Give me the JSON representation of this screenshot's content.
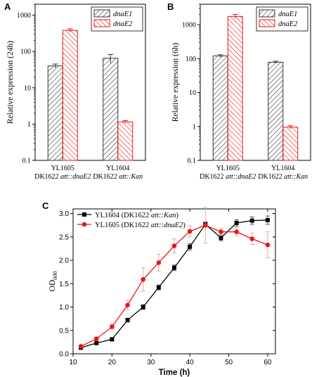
{
  "chart_data": [
    {
      "panel": "A",
      "type": "bar",
      "yscale": "log",
      "ylabel": "Relative expression (24h)",
      "ylim": [
        0.1,
        2000
      ],
      "yticks": [
        "0.1",
        "1",
        "10",
        "100",
        "1000"
      ],
      "categories": [
        {
          "line1": "YL1605",
          "line2_prefix": "DK1622 ",
          "line2_italic": "att::dnaE2"
        },
        {
          "line1": "YL1604",
          "line2_prefix": "DK1622 ",
          "line2_italic": "att::Kan"
        }
      ],
      "series": [
        {
          "name": "dnaE1",
          "values": [
            40,
            65
          ],
          "errors": [
            5,
            18
          ]
        },
        {
          "name": "dnaE2",
          "values": [
            380,
            1.15
          ],
          "errors": [
            40,
            0.1
          ]
        }
      ],
      "legend": "top-right"
    },
    {
      "panel": "B",
      "type": "bar",
      "yscale": "log",
      "ylabel": "Relative expression (6h)",
      "ylim": [
        0.1,
        4000
      ],
      "yticks": [
        "0.1",
        "1",
        "10",
        "100",
        "1000"
      ],
      "categories": [
        {
          "line1": "YL1605",
          "line2_prefix": "DK1622 ",
          "line2_italic": "att::dnaE2"
        },
        {
          "line1": "YL1604",
          "line2_prefix": "DK1622 ",
          "line2_italic": "att::Kan"
        }
      ],
      "series": [
        {
          "name": "dnaE1",
          "values": [
            120,
            78
          ],
          "errors": [
            10,
            6
          ]
        },
        {
          "name": "dnaE2",
          "values": [
            1750,
            0.95
          ],
          "errors": [
            250,
            0.1
          ]
        }
      ],
      "legend": "top-right"
    },
    {
      "panel": "C",
      "type": "line",
      "xlabel": "Time (h)",
      "ylabel_main": "OD",
      "ylabel_sub": "600",
      "xlim": [
        10,
        62
      ],
      "ylim": [
        0.0,
        3.1
      ],
      "xticks": [
        10,
        20,
        30,
        40,
        50,
        60
      ],
      "yticks": [
        0.0,
        0.5,
        1.0,
        1.5,
        2.0,
        2.5,
        3.0
      ],
      "series": [
        {
          "name_prefix": "YL1604 (DK1622 ",
          "name_italic": "att::Kan",
          "name_suffix": ")",
          "color": "#000000",
          "marker": "square",
          "x": [
            12,
            16,
            20,
            24,
            28,
            32,
            36,
            40,
            44,
            48,
            52,
            56,
            60
          ],
          "y": [
            0.13,
            0.23,
            0.31,
            0.72,
            1.0,
            1.42,
            1.84,
            2.29,
            2.77,
            2.48,
            2.8,
            2.85,
            2.86
          ],
          "errors": [
            0.02,
            0.03,
            0.03,
            0.04,
            0.05,
            0.05,
            0.06,
            0.07,
            0.05,
            0.06,
            0.07,
            0.08,
            0.09
          ]
        },
        {
          "name_prefix": "YL1605 (DK1622 ",
          "name_italic": "att::dnaE2",
          "name_suffix": ")",
          "color": "#e8161b",
          "marker": "circle",
          "x": [
            12,
            16,
            20,
            24,
            28,
            32,
            36,
            40,
            44,
            48,
            52,
            56,
            60
          ],
          "y": [
            0.16,
            0.32,
            0.58,
            1.04,
            1.59,
            1.95,
            2.31,
            2.62,
            2.75,
            2.61,
            2.61,
            2.46,
            2.33
          ],
          "errors": [
            0.03,
            0.04,
            0.05,
            0.1,
            0.25,
            0.18,
            0.15,
            0.12,
            0.38,
            0.08,
            0.08,
            0.12,
            0.28
          ]
        }
      ],
      "legend": "top-left"
    }
  ]
}
